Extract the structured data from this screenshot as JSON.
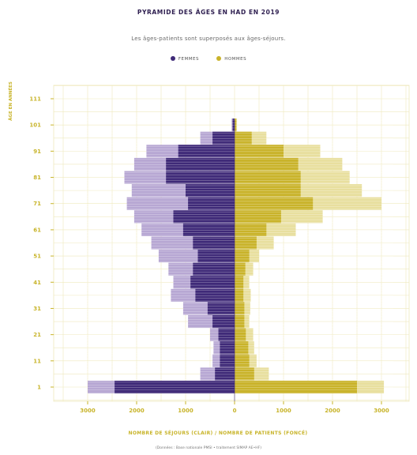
{
  "chart_data": {
    "type": "bar",
    "orientation": "horizontal-pyramid",
    "title": "PYRAMIDE DES ÂGES EN HAD EN 2019",
    "subtitle": "Les âges-patients sont superposés aux âges-séjours.",
    "xlabel": "NOMBRE DE SÉJOURS (CLAIR) / NOMBRE DE PATIENTS (FONCÉ)",
    "ylabel": "ÂGE EN ANNÉES",
    "caption": "(Données : Base nationale PMSI • traitement SIMAP AE•HF)",
    "legend": [
      {
        "label": "FEMMES",
        "color": "#3f2a78"
      },
      {
        "label": "HOMMES",
        "color": "#c9b32a"
      }
    ],
    "xlim": [
      -3900,
      3900
    ],
    "ylim": [
      -6,
      119
    ],
    "x_ticks": [
      -3000,
      -2000,
      -1000,
      0,
      1000,
      2000,
      3000
    ],
    "x_tick_labels": [
      "3000",
      "2000",
      "1000",
      "0",
      "1000",
      "2000",
      "3000"
    ],
    "y_ticks": [
      1,
      11,
      21,
      31,
      41,
      51,
      61,
      71,
      81,
      91,
      101,
      111
    ],
    "grid": true,
    "colors": {
      "femmes_sejours": "#b7a7d3",
      "femmes_patients": "#3f2a78",
      "hommes_sejours": "#e8df9e",
      "hommes_patients": "#c9b32a",
      "grid": "#efe9bd",
      "axis": "#c8b42a"
    },
    "series": [
      {
        "name": "FEMMES",
        "ages": [
          1,
          6,
          11,
          16,
          21,
          26,
          31,
          36,
          41,
          46,
          51,
          56,
          61,
          66,
          71,
          76,
          81,
          86,
          91,
          96,
          101
        ],
        "sejours": [
          3000,
          700,
          450,
          430,
          500,
          950,
          1050,
          1300,
          1250,
          1350,
          1550,
          1700,
          1900,
          2050,
          2200,
          2100,
          2250,
          2050,
          1800,
          700,
          60
        ],
        "patients": [
          2450,
          400,
          300,
          300,
          330,
          450,
          550,
          800,
          900,
          850,
          750,
          850,
          1050,
          1250,
          950,
          1000,
          1400,
          1400,
          1150,
          450,
          40
        ]
      },
      {
        "name": "HOMMES",
        "ages": [
          1,
          6,
          11,
          16,
          21,
          26,
          31,
          36,
          41,
          46,
          51,
          56,
          61,
          66,
          71,
          76,
          81,
          86,
          91,
          96,
          101
        ],
        "sejours": [
          3050,
          700,
          450,
          400,
          380,
          300,
          320,
          330,
          300,
          380,
          500,
          800,
          1250,
          1800,
          3000,
          2600,
          2350,
          2200,
          1750,
          650,
          50
        ],
        "patients": [
          2500,
          400,
          300,
          280,
          230,
          200,
          200,
          180,
          180,
          220,
          300,
          450,
          650,
          950,
          1600,
          1350,
          1350,
          1300,
          1000,
          350,
          35
        ]
      }
    ]
  }
}
